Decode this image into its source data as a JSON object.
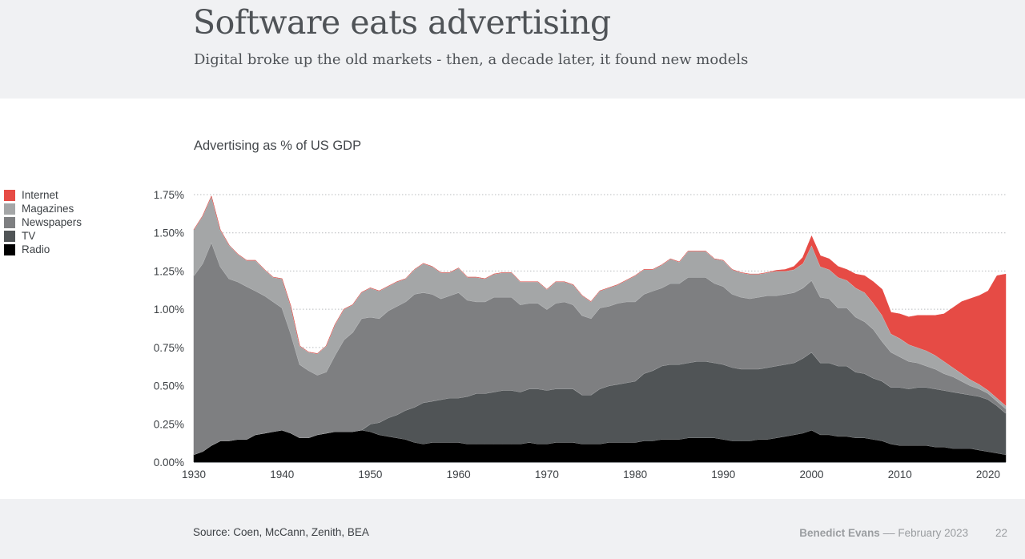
{
  "header": {
    "title": "Software eats advertising",
    "subtitle": "Digital broke up the old markets - then, a decade later, it found new models"
  },
  "footer": {
    "source": "Source: Coen, McCann, Zenith, BEA",
    "author": "Benedict Evans",
    "separator": "––",
    "date": "February 2023",
    "page_number": "22"
  },
  "chart_data": {
    "type": "area",
    "stacked": true,
    "title": "Advertising as % of US GDP",
    "xlabel": "",
    "ylabel": "",
    "ylim": [
      0,
      1.75
    ],
    "xlim": [
      1930,
      2022
    ],
    "grid": true,
    "legend_position": "left",
    "y_ticks": [
      {
        "value": 1.75,
        "label": "1.75%"
      },
      {
        "value": 1.5,
        "label": "1.50%"
      },
      {
        "value": 1.25,
        "label": "1.25%"
      },
      {
        "value": 1.0,
        "label": "1.00%"
      },
      {
        "value": 0.75,
        "label": "0.75%"
      },
      {
        "value": 0.5,
        "label": "0.50%"
      },
      {
        "value": 0.25,
        "label": "0.25%"
      },
      {
        "value": 0.0,
        "label": "0.00%"
      }
    ],
    "x_ticks": [
      {
        "value": 1930,
        "label": "1930"
      },
      {
        "value": 1940,
        "label": "1940"
      },
      {
        "value": 1950,
        "label": "1950"
      },
      {
        "value": 1960,
        "label": "1960"
      },
      {
        "value": 1970,
        "label": "1970"
      },
      {
        "value": 1980,
        "label": "1980"
      },
      {
        "value": 1990,
        "label": "1990"
      },
      {
        "value": 2000,
        "label": "2000"
      },
      {
        "value": 2010,
        "label": "2010"
      },
      {
        "value": 2020,
        "label": "2020"
      }
    ],
    "x": [
      1930,
      1931,
      1932,
      1933,
      1934,
      1935,
      1936,
      1937,
      1938,
      1939,
      1940,
      1941,
      1942,
      1943,
      1944,
      1945,
      1946,
      1947,
      1948,
      1949,
      1950,
      1951,
      1952,
      1953,
      1954,
      1955,
      1956,
      1957,
      1958,
      1959,
      1960,
      1961,
      1962,
      1963,
      1964,
      1965,
      1966,
      1967,
      1968,
      1969,
      1970,
      1971,
      1972,
      1973,
      1974,
      1975,
      1976,
      1977,
      1978,
      1979,
      1980,
      1981,
      1982,
      1983,
      1984,
      1985,
      1986,
      1987,
      1988,
      1989,
      1990,
      1991,
      1992,
      1993,
      1994,
      1995,
      1996,
      1997,
      1998,
      1999,
      2000,
      2001,
      2002,
      2003,
      2004,
      2005,
      2006,
      2007,
      2008,
      2009,
      2010,
      2011,
      2012,
      2013,
      2014,
      2015,
      2016,
      2017,
      2018,
      2019,
      2020,
      2021,
      2022
    ],
    "series": [
      {
        "name": "Radio",
        "color": "#000000",
        "values": [
          0.05,
          0.07,
          0.11,
          0.14,
          0.14,
          0.15,
          0.15,
          0.18,
          0.19,
          0.2,
          0.21,
          0.19,
          0.16,
          0.16,
          0.18,
          0.19,
          0.2,
          0.2,
          0.2,
          0.21,
          0.2,
          0.18,
          0.17,
          0.16,
          0.15,
          0.13,
          0.12,
          0.13,
          0.13,
          0.13,
          0.13,
          0.12,
          0.12,
          0.12,
          0.12,
          0.12,
          0.12,
          0.12,
          0.13,
          0.12,
          0.12,
          0.13,
          0.13,
          0.13,
          0.12,
          0.12,
          0.12,
          0.13,
          0.13,
          0.13,
          0.13,
          0.14,
          0.14,
          0.15,
          0.15,
          0.15,
          0.16,
          0.16,
          0.16,
          0.16,
          0.15,
          0.14,
          0.14,
          0.14,
          0.15,
          0.15,
          0.16,
          0.17,
          0.18,
          0.19,
          0.21,
          0.18,
          0.18,
          0.17,
          0.17,
          0.16,
          0.16,
          0.15,
          0.14,
          0.12,
          0.11,
          0.11,
          0.11,
          0.11,
          0.1,
          0.1,
          0.09,
          0.09,
          0.09,
          0.08,
          0.07,
          0.06,
          0.05
        ]
      },
      {
        "name": "TV",
        "color": "#505456",
        "values": [
          0,
          0,
          0,
          0,
          0,
          0,
          0,
          0,
          0,
          0,
          0,
          0,
          0,
          0,
          0,
          0,
          0,
          0,
          0,
          0,
          0.05,
          0.08,
          0.12,
          0.15,
          0.19,
          0.23,
          0.27,
          0.27,
          0.28,
          0.29,
          0.29,
          0.31,
          0.33,
          0.33,
          0.34,
          0.35,
          0.35,
          0.34,
          0.35,
          0.36,
          0.35,
          0.35,
          0.35,
          0.35,
          0.32,
          0.32,
          0.36,
          0.37,
          0.38,
          0.39,
          0.4,
          0.44,
          0.46,
          0.48,
          0.49,
          0.49,
          0.49,
          0.5,
          0.5,
          0.49,
          0.49,
          0.48,
          0.47,
          0.47,
          0.46,
          0.47,
          0.47,
          0.47,
          0.47,
          0.49,
          0.51,
          0.47,
          0.47,
          0.46,
          0.46,
          0.43,
          0.42,
          0.4,
          0.39,
          0.37,
          0.38,
          0.37,
          0.38,
          0.38,
          0.38,
          0.37,
          0.37,
          0.36,
          0.35,
          0.35,
          0.34,
          0.31,
          0.27
        ]
      },
      {
        "name": "Newspapers",
        "color": "#7e7f81",
        "values": [
          1.17,
          1.23,
          1.33,
          1.14,
          1.06,
          1.03,
          1.0,
          0.94,
          0.9,
          0.85,
          0.8,
          0.65,
          0.48,
          0.44,
          0.39,
          0.4,
          0.5,
          0.6,
          0.65,
          0.73,
          0.7,
          0.68,
          0.7,
          0.71,
          0.71,
          0.74,
          0.72,
          0.7,
          0.66,
          0.67,
          0.69,
          0.63,
          0.6,
          0.6,
          0.62,
          0.61,
          0.61,
          0.57,
          0.56,
          0.56,
          0.53,
          0.56,
          0.57,
          0.55,
          0.52,
          0.5,
          0.53,
          0.52,
          0.53,
          0.53,
          0.52,
          0.52,
          0.52,
          0.51,
          0.53,
          0.53,
          0.56,
          0.55,
          0.55,
          0.52,
          0.51,
          0.48,
          0.47,
          0.46,
          0.47,
          0.47,
          0.46,
          0.46,
          0.46,
          0.46,
          0.47,
          0.43,
          0.42,
          0.38,
          0.38,
          0.36,
          0.34,
          0.32,
          0.26,
          0.23,
          0.2,
          0.18,
          0.16,
          0.14,
          0.13,
          0.11,
          0.1,
          0.08,
          0.06,
          0.05,
          0.04,
          0.03,
          0.03
        ]
      },
      {
        "name": "Magazines",
        "color": "#a4a6a7",
        "values": [
          0.3,
          0.31,
          0.3,
          0.24,
          0.22,
          0.18,
          0.17,
          0.2,
          0.17,
          0.16,
          0.19,
          0.18,
          0.12,
          0.12,
          0.14,
          0.17,
          0.2,
          0.2,
          0.18,
          0.17,
          0.19,
          0.18,
          0.16,
          0.16,
          0.15,
          0.16,
          0.19,
          0.18,
          0.17,
          0.15,
          0.16,
          0.15,
          0.16,
          0.15,
          0.15,
          0.16,
          0.16,
          0.15,
          0.14,
          0.14,
          0.13,
          0.14,
          0.13,
          0.13,
          0.13,
          0.11,
          0.11,
          0.12,
          0.12,
          0.14,
          0.17,
          0.16,
          0.14,
          0.15,
          0.16,
          0.14,
          0.17,
          0.17,
          0.17,
          0.16,
          0.17,
          0.16,
          0.16,
          0.16,
          0.15,
          0.15,
          0.16,
          0.15,
          0.15,
          0.16,
          0.23,
          0.2,
          0.19,
          0.2,
          0.18,
          0.19,
          0.19,
          0.17,
          0.17,
          0.12,
          0.12,
          0.11,
          0.1,
          0.1,
          0.09,
          0.08,
          0.06,
          0.05,
          0.04,
          0.03,
          0.02,
          0.02,
          0.02
        ]
      },
      {
        "name": "Internet",
        "color": "#e64b45",
        "values": [
          0,
          0,
          0,
          0,
          0,
          0,
          0,
          0,
          0,
          0,
          0,
          0,
          0,
          0,
          0,
          0,
          0,
          0,
          0,
          0,
          0,
          0,
          0,
          0,
          0,
          0,
          0,
          0,
          0,
          0,
          0,
          0,
          0,
          0,
          0,
          0,
          0,
          0,
          0,
          0,
          0,
          0,
          0,
          0,
          0,
          0,
          0,
          0,
          0,
          0,
          0,
          0,
          0,
          0,
          0,
          0,
          0,
          0,
          0,
          0,
          0,
          0,
          0,
          0,
          0,
          0,
          0.005,
          0.01,
          0.02,
          0.04,
          0.06,
          0.07,
          0.07,
          0.07,
          0.07,
          0.09,
          0.11,
          0.14,
          0.17,
          0.14,
          0.16,
          0.18,
          0.21,
          0.23,
          0.26,
          0.31,
          0.39,
          0.47,
          0.53,
          0.58,
          0.65,
          0.8,
          0.86
        ]
      }
    ]
  }
}
